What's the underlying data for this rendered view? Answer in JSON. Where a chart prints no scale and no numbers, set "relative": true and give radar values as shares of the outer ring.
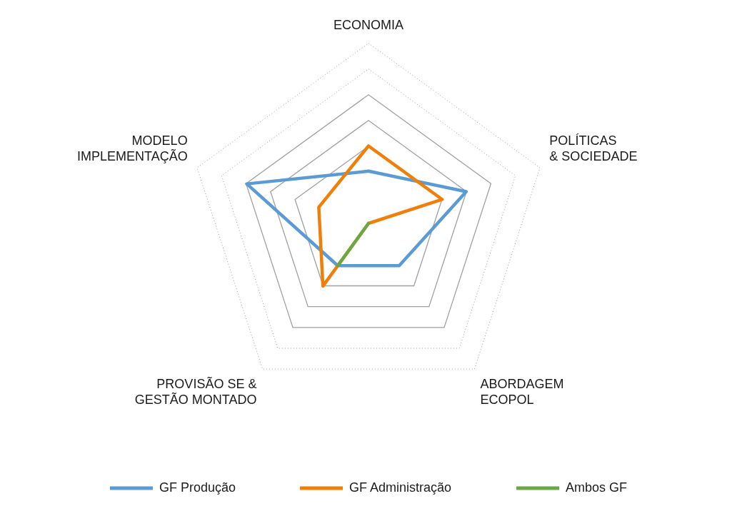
{
  "chart_data": {
    "type": "radar",
    "categories": [
      "ECONOMIA",
      "POLÍTICAS\n& SOCIEDADE",
      "ABORDAGEM\nECOPOL",
      "PROVISÃO SE &\nGESTÃO MONTADO",
      "MODELO\nIMPLEMENTAÇÃO"
    ],
    "relative": true,
    "grid": true,
    "legend": "bottom",
    "marker": "none",
    "series": [
      {
        "name": "GF Produção",
        "color": "#5b9bd5",
        "values": [
          0.29,
          0.57,
          0.29,
          0.29,
          0.71
        ]
      },
      {
        "name": "GF Administração",
        "color": "#f07f09",
        "values": [
          0.43,
          0.43,
          0,
          0.43,
          0.29
        ]
      },
      {
        "name": "Ambos GF",
        "color": "#6aa843",
        "values": [
          0,
          0,
          0,
          0.29,
          0
        ]
      }
    ]
  }
}
